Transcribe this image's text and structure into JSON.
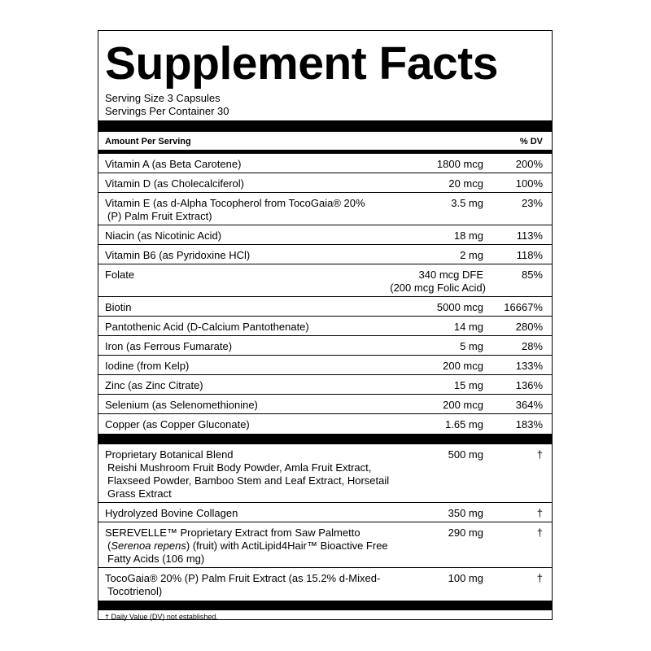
{
  "title": "Supplement Facts",
  "serving": [
    "Serving Size 3 Capsules",
    "Servings Per Container 30"
  ],
  "header": {
    "amount": "Amount Per Serving",
    "dv": "% DV"
  },
  "sections": [
    {
      "rows": [
        {
          "name": [
            "Vitamin A (as Beta Carotene)"
          ],
          "amount": [
            "1800 mcg"
          ],
          "dv": "200%"
        },
        {
          "name": [
            "Vitamin D (as Cholecalciferol)"
          ],
          "amount": [
            "20 mcg"
          ],
          "dv": "100%"
        },
        {
          "name": [
            "Vitamin E (as d-Alpha Tocopherol from TocoGaia® 20%",
            "(P) Palm Fruit Extract)"
          ],
          "amount": [
            "3.5 mg"
          ],
          "dv": "23%"
        },
        {
          "name": [
            "Niacin (as Nicotinic Acid)"
          ],
          "amount": [
            "18 mg"
          ],
          "dv": "113%"
        },
        {
          "name": [
            "Vitamin B6 (as Pyridoxine HCl)"
          ],
          "amount": [
            "2 mg"
          ],
          "dv": "118%"
        },
        {
          "name": [
            "Folate"
          ],
          "amount": [
            "340 mcg DFE",
            "(200 mcg Folic Acid)"
          ],
          "dv": "85%"
        },
        {
          "name": [
            "Biotin"
          ],
          "amount": [
            "5000 mcg"
          ],
          "dv": "16667%"
        },
        {
          "name": [
            "Pantothenic Acid (D-Calcium Pantothenate)"
          ],
          "amount": [
            "14 mg"
          ],
          "dv": "280%"
        },
        {
          "name": [
            "Iron (as Ferrous Fumarate)"
          ],
          "amount": [
            "5 mg"
          ],
          "dv": "28%"
        },
        {
          "name": [
            "Iodine (from Kelp)"
          ],
          "amount": [
            "200 mcg"
          ],
          "dv": "133%"
        },
        {
          "name": [
            "Zinc (as Zinc Citrate)"
          ],
          "amount": [
            "15 mg"
          ],
          "dv": "136%"
        },
        {
          "name": [
            "Selenium (as Selenomethionine)"
          ],
          "amount": [
            "200 mcg"
          ],
          "dv": "364%"
        },
        {
          "name": [
            "Copper (as Copper Gluconate)"
          ],
          "amount": [
            "1.65 mg"
          ],
          "dv": "183%"
        }
      ]
    },
    {
      "rows": [
        {
          "name": [
            "Proprietary Botanical Blend",
            "Reishi Mushroom Fruit Body Powder, Amla Fruit Extract,",
            "Flaxseed Powder, Bamboo Stem and Leaf Extract, Horsetail",
            "Grass Extract"
          ],
          "amount": [
            "500 mg"
          ],
          "dv": "†"
        },
        {
          "name": [
            "Hydrolyzed Bovine Collagen"
          ],
          "amount": [
            "350 mg"
          ],
          "dv": "†"
        },
        {
          "name": [
            "SEREVELLE™ Proprietary Extract from Saw Palmetto",
            [
              "(",
              {
                "text": "Serenoa repens",
                "italic": true
              },
              ") (fruit) with ActiLipid4Hair™ Bioactive Free"
            ],
            "Fatty Acids (106 mg)"
          ],
          "amount": [
            "290 mg"
          ],
          "dv": "†"
        },
        {
          "name": [
            "TocoGaia® 20% (P) Palm Fruit Extract (as 15.2% d-Mixed-",
            "Tocotrienol)"
          ],
          "amount": [
            "100 mg"
          ],
          "dv": "†"
        }
      ]
    }
  ],
  "footnote": "† Daily Value (DV) not established."
}
